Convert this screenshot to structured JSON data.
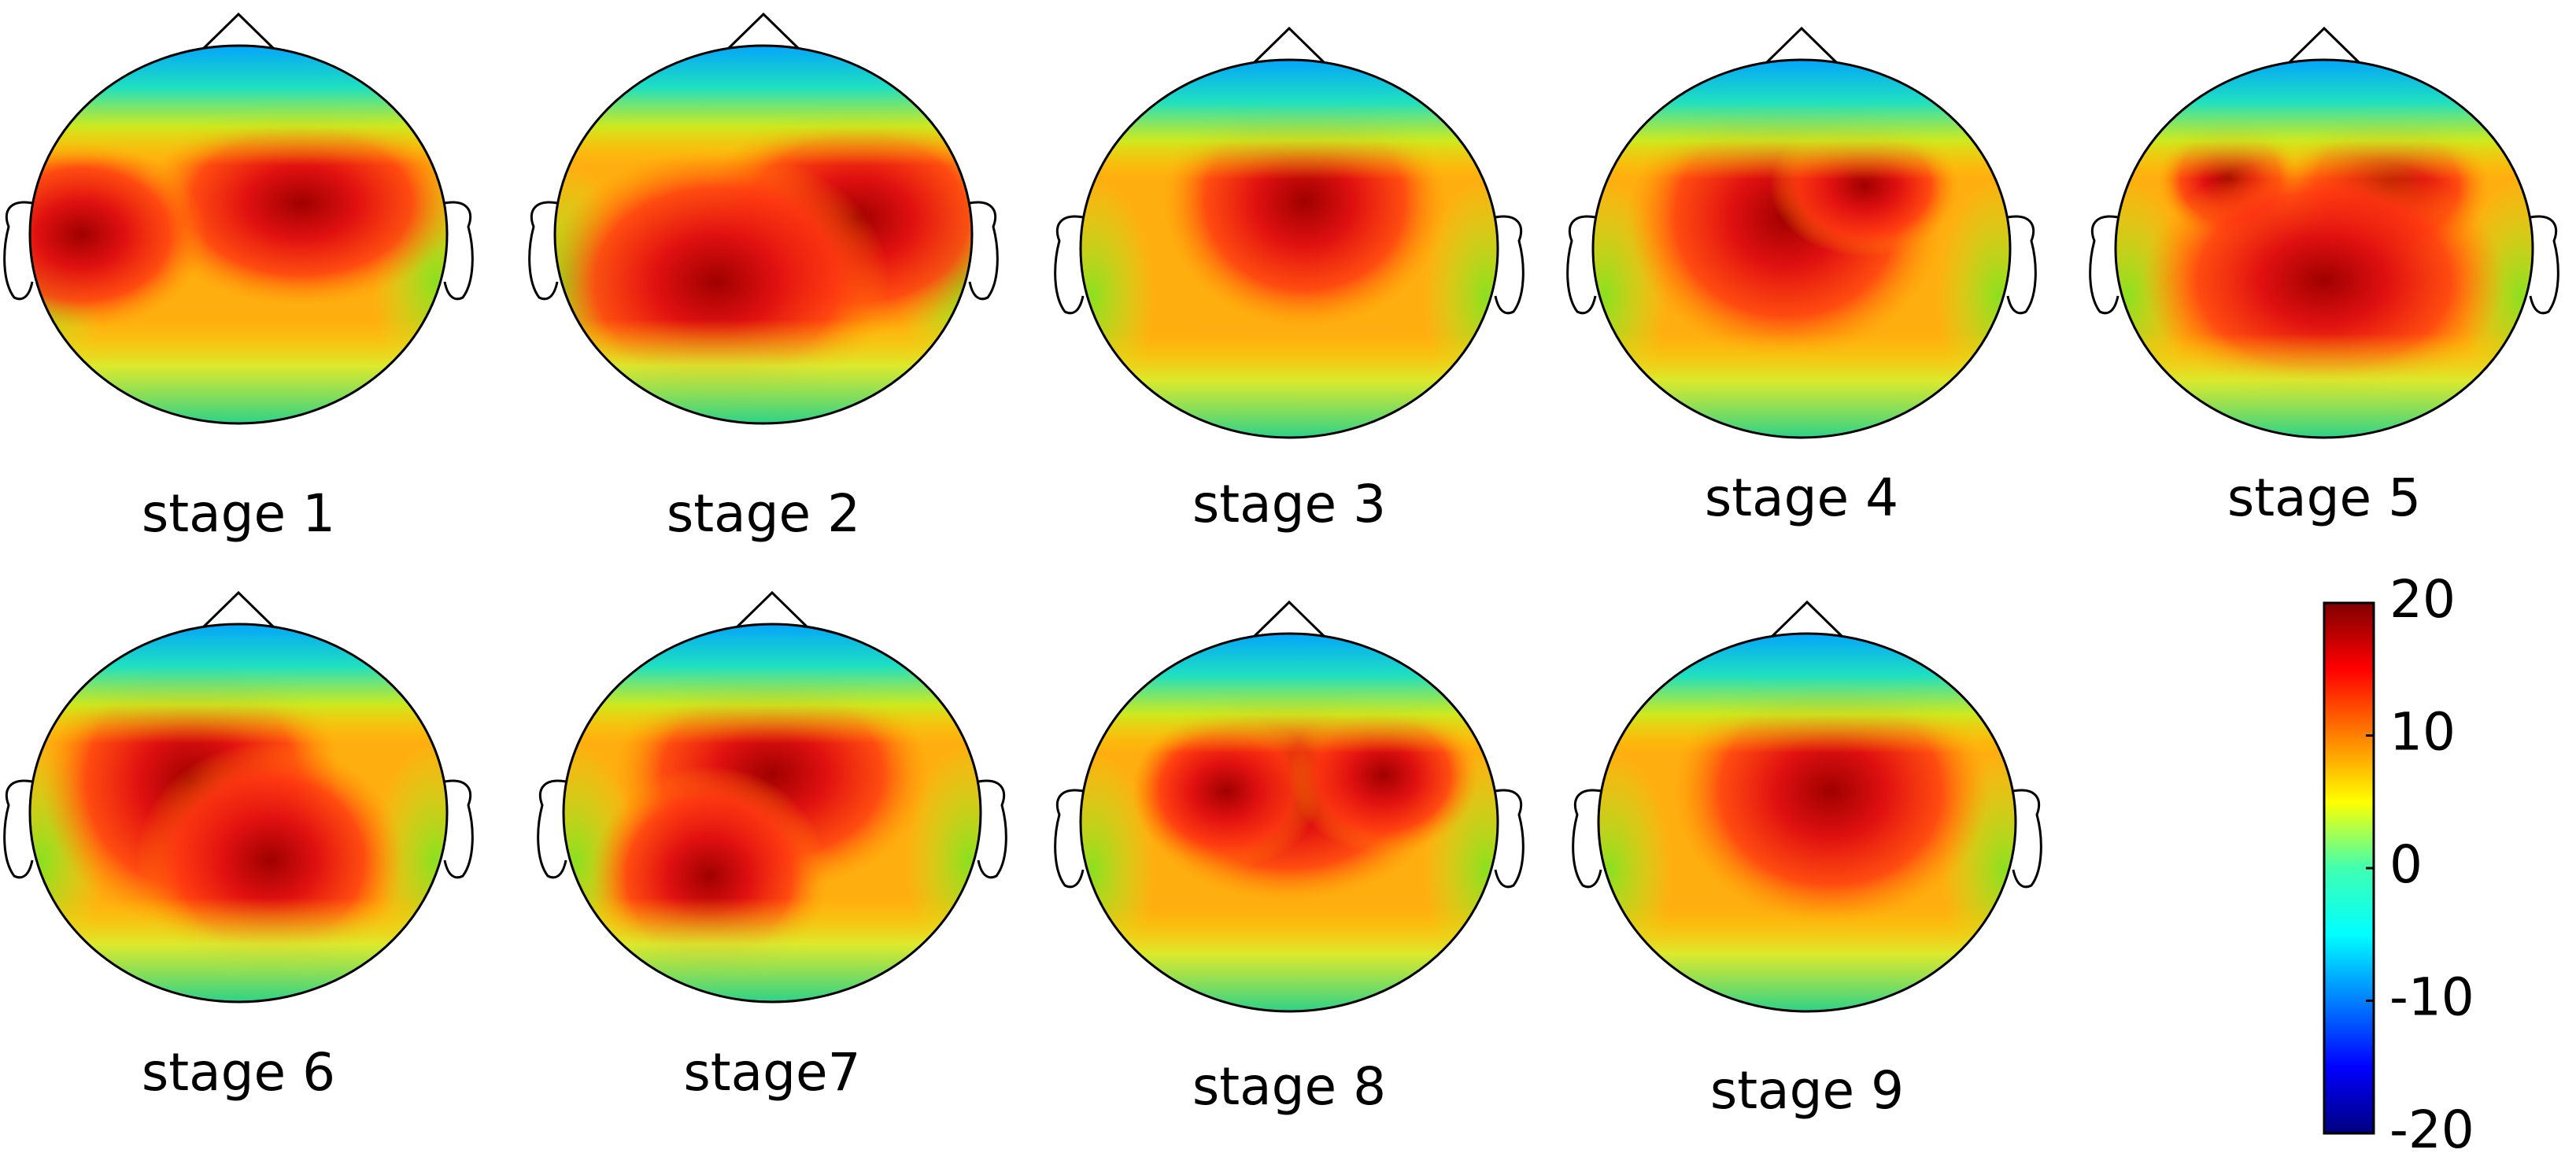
{
  "chart_data": {
    "type": "topomap",
    "panels": [
      "stage 1",
      "stage 2",
      "stage 3",
      "stage 4",
      "stage 5",
      "stage 6",
      "stage7",
      "stage 8",
      "stage 9"
    ],
    "colorbar": {
      "zlim": [
        -20,
        20
      ],
      "zticks": [
        20,
        10,
        0,
        -10,
        -20
      ]
    }
  }
}
